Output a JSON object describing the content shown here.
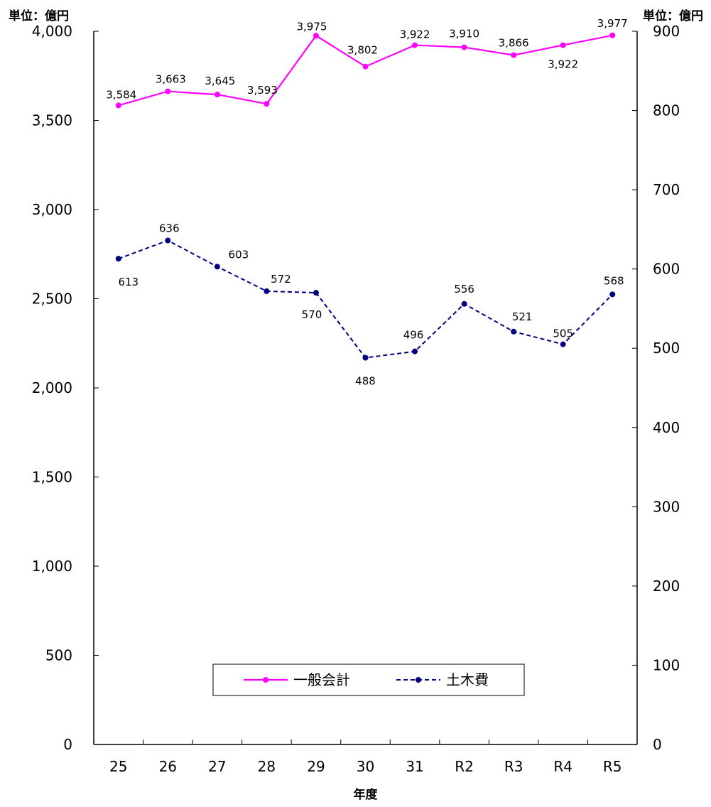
{
  "chart_data": {
    "type": "line",
    "categories": [
      "25",
      "26",
      "27",
      "28",
      "29",
      "30",
      "31",
      "R2",
      "R3",
      "R4",
      "R5"
    ],
    "xlabel": "年度",
    "y_left": {
      "unit": "単位：億円",
      "ylim": [
        0,
        4000
      ],
      "ticks": [
        "0",
        "500",
        "1,000",
        "1,500",
        "2,000",
        "2,500",
        "3,000",
        "3,500",
        "4,000"
      ]
    },
    "y_right": {
      "unit": "単位：億円",
      "ylim": [
        0,
        900
      ],
      "ticks": [
        "0",
        "100",
        "200",
        "300",
        "400",
        "500",
        "600",
        "700",
        "800",
        "900"
      ]
    },
    "series": [
      {
        "name": "一般会計",
        "axis": "left",
        "color": "#ff00ff",
        "line_style": "solid",
        "values": [
          3584,
          3663,
          3645,
          3593,
          3975,
          3802,
          3922,
          3910,
          3866,
          3922,
          3977
        ],
        "labels": [
          "3,584",
          "3,663",
          "3,645",
          "3,593",
          "3,975",
          "3,802",
          "3,922",
          "3,910",
          "3,866",
          "3,922",
          "3,977"
        ]
      },
      {
        "name": "土木費",
        "axis": "right",
        "color": "#000080",
        "line_style": "dashed",
        "values": [
          613,
          636,
          603,
          572,
          570,
          488,
          496,
          556,
          521,
          505,
          568
        ],
        "labels": [
          "613",
          "636",
          "603",
          "572",
          "570",
          "488",
          "496",
          "556",
          "521",
          "505",
          "568"
        ]
      }
    ],
    "legend": "bottom-center",
    "grid": false
  }
}
